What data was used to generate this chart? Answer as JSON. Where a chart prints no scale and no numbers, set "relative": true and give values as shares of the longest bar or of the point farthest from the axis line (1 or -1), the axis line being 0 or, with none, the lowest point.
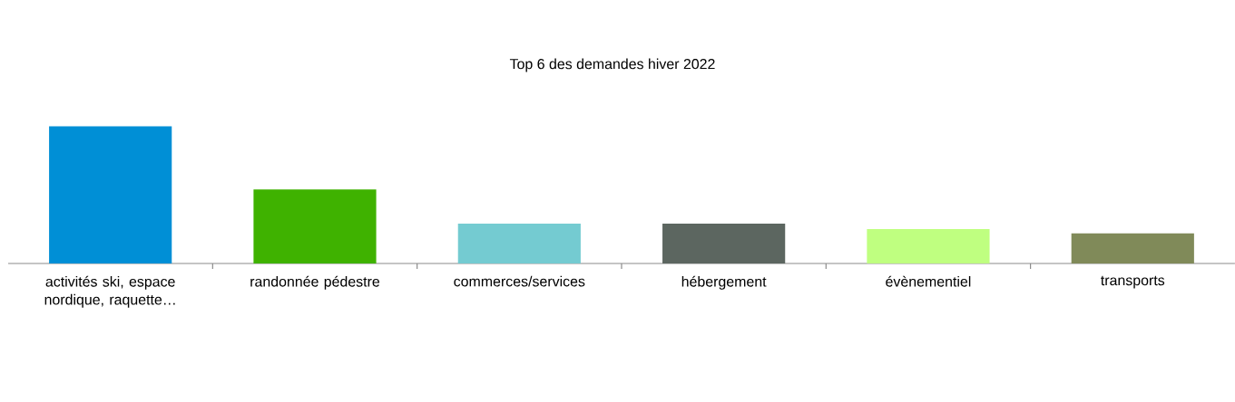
{
  "chart_data": {
    "type": "bar",
    "title": "Top 6 des demandes hiver 2022",
    "relative": true,
    "categories": [
      "activités ski, espace nordique, raquette…",
      "randonnée pédestre",
      "commerces/services",
      "hébergement",
      "évènementiel",
      "transports"
    ],
    "values": [
      1,
      0.54,
      0.29,
      0.29,
      0.25,
      0.22
    ],
    "colors": [
      "#008fd6",
      "#3fb200",
      "#74cbd1",
      "#5c6660",
      "#bfff80",
      "#808a59"
    ]
  }
}
